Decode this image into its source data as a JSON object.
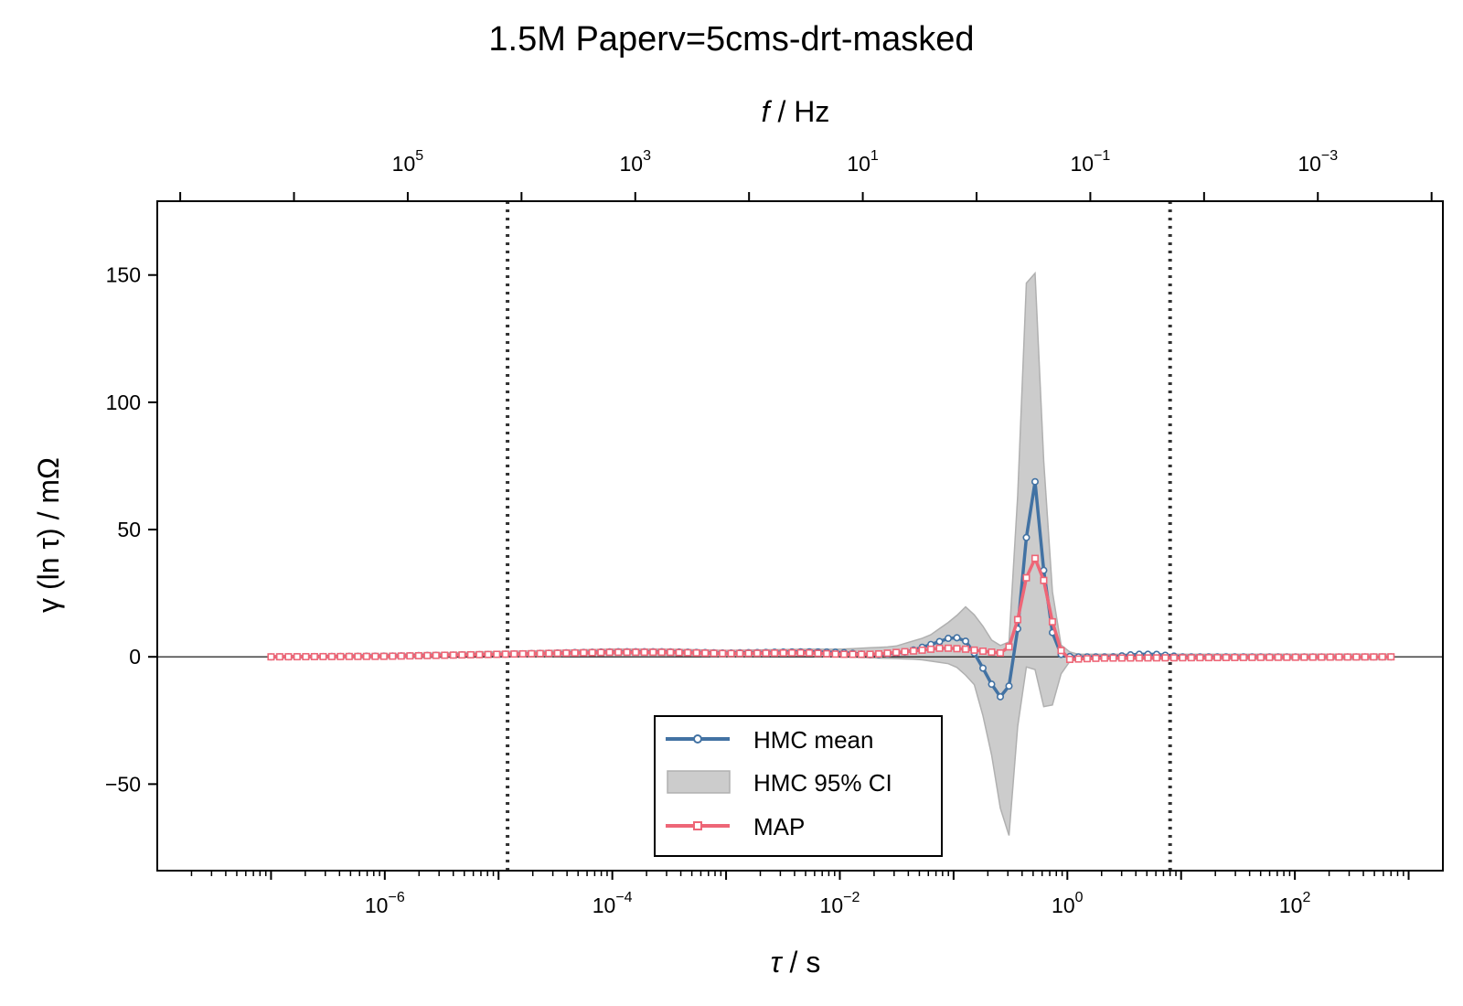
{
  "chart_data": {
    "type": "line",
    "title": "1.5M Paperv=5cms-drt-masked",
    "xlabel_symbol": "τ",
    "xlabel_unit": " / s",
    "top_xlabel_symbol": "f",
    "top_xlabel_unit": " / Hz",
    "ylabel_main": "γ (ln τ)",
    "ylabel_unit": " / mΩ",
    "x_scale": "log",
    "x_lim": [
      1e-08,
      2000.0
    ],
    "y_lim": [
      -84,
      179
    ],
    "x_ticks": [
      {
        "base": "10",
        "exp": "−6",
        "value": 1e-06
      },
      {
        "base": "10",
        "exp": "−4",
        "value": 0.0001
      },
      {
        "base": "10",
        "exp": "−2",
        "value": 0.01
      },
      {
        "base": "10",
        "exp": "0",
        "value": 1
      },
      {
        "base": "10",
        "exp": "2",
        "value": 100
      }
    ],
    "top_x_ticks": [
      {
        "base": "10",
        "exp": "5",
        "value": 100000.0
      },
      {
        "base": "10",
        "exp": "3",
        "value": 1000.0
      },
      {
        "base": "10",
        "exp": "1",
        "value": 10
      },
      {
        "base": "10",
        "exp": "−1",
        "value": 0.1
      },
      {
        "base": "10",
        "exp": "−3",
        "value": 0.001
      }
    ],
    "y_ticks": [
      {
        "label": "−50",
        "value": -50
      },
      {
        "label": "0",
        "value": 0
      },
      {
        "label": "50",
        "value": 50
      },
      {
        "label": "100",
        "value": 100
      },
      {
        "label": "150",
        "value": 150
      }
    ],
    "reference_lines_x": [
      1.2e-05,
      8.0
    ],
    "legend": {
      "position": "lower center",
      "entries": [
        "HMC mean",
        "HMC 95% CI",
        "MAP"
      ]
    },
    "colors": {
      "hmc_mean": "#4272a3",
      "ci_fill": "#cccccc",
      "ci_edge": "#b0b0b0",
      "map": "#ee6677",
      "ref_line": "#333333"
    },
    "x_range": [
      1e-07,
      700
    ],
    "n_points": 130,
    "series": [
      {
        "name": "HMC mean",
        "points": [
          [
            1e-07,
            0
          ],
          [
            1e-06,
            0.3
          ],
          [
            1e-05,
            1.0
          ],
          [
            0.0001,
            2.0
          ],
          [
            0.0003,
            2.0
          ],
          [
            0.001,
            1.5
          ],
          [
            0.005,
            2.0
          ],
          [
            0.01,
            1.8
          ],
          [
            0.02,
            0.7
          ],
          [
            0.04,
            2.0
          ],
          [
            0.07,
            5.5
          ],
          [
            0.1,
            8.0
          ],
          [
            0.13,
            6.0
          ],
          [
            0.16,
            0
          ],
          [
            0.2,
            -8
          ],
          [
            0.25,
            -16
          ],
          [
            0.3,
            -14
          ],
          [
            0.35,
            3
          ],
          [
            0.4,
            27
          ],
          [
            0.46,
            59
          ],
          [
            0.5,
            74
          ],
          [
            0.56,
            59
          ],
          [
            0.63,
            30
          ],
          [
            0.7,
            14
          ],
          [
            0.8,
            3
          ],
          [
            0.9,
            0.5
          ],
          [
            1.1,
            0
          ],
          [
            2.5,
            0
          ],
          [
            4,
            1.0
          ],
          [
            6,
            1.0
          ],
          [
            10,
            0
          ],
          [
            700,
            0
          ]
        ]
      },
      {
        "name": "HMC 95% CI",
        "upper": [
          [
            1e-07,
            0.5
          ],
          [
            1e-06,
            1.0
          ],
          [
            1e-05,
            2.0
          ],
          [
            0.0001,
            3.0
          ],
          [
            0.0003,
            3.0
          ],
          [
            0.001,
            2.5
          ],
          [
            0.005,
            3.0
          ],
          [
            0.01,
            3.0
          ],
          [
            0.03,
            4.0
          ],
          [
            0.06,
            8.0
          ],
          [
            0.1,
            15
          ],
          [
            0.13,
            20
          ],
          [
            0.17,
            14
          ],
          [
            0.22,
            6
          ],
          [
            0.27,
            4
          ],
          [
            0.31,
            6
          ],
          [
            0.35,
            40
          ],
          [
            0.4,
            110
          ],
          [
            0.45,
            160
          ],
          [
            0.5,
            167
          ],
          [
            0.56,
            120
          ],
          [
            0.63,
            70
          ],
          [
            0.7,
            35
          ],
          [
            0.8,
            12
          ],
          [
            0.9,
            3
          ],
          [
            1.2,
            1
          ],
          [
            700,
            1
          ]
        ],
        "lower": [
          [
            1e-07,
            -0.5
          ],
          [
            1e-06,
            -0.5
          ],
          [
            1e-05,
            0
          ],
          [
            0.0001,
            1.0
          ],
          [
            0.001,
            0.5
          ],
          [
            0.01,
            0
          ],
          [
            0.05,
            -1
          ],
          [
            0.1,
            -3
          ],
          [
            0.15,
            -10
          ],
          [
            0.2,
            -30
          ],
          [
            0.25,
            -55
          ],
          [
            0.28,
            -72
          ],
          [
            0.31,
            -70
          ],
          [
            0.36,
            -30
          ],
          [
            0.42,
            -5
          ],
          [
            0.47,
            -2
          ],
          [
            0.52,
            -5
          ],
          [
            0.6,
            -18
          ],
          [
            0.68,
            -24
          ],
          [
            0.75,
            -18
          ],
          [
            0.85,
            -8
          ],
          [
            1.0,
            -2
          ],
          [
            1.3,
            -1
          ],
          [
            700,
            -1
          ]
        ]
      },
      {
        "name": "MAP",
        "points": [
          [
            1e-07,
            0
          ],
          [
            1e-06,
            0.2
          ],
          [
            1e-05,
            1.0
          ],
          [
            0.0001,
            1.8
          ],
          [
            0.0003,
            1.8
          ],
          [
            0.001,
            1.3
          ],
          [
            0.005,
            1.6
          ],
          [
            0.01,
            1.0
          ],
          [
            0.02,
            1.0
          ],
          [
            0.05,
            2.5
          ],
          [
            0.08,
            3.5
          ],
          [
            0.13,
            3.0
          ],
          [
            0.2,
            2.0
          ],
          [
            0.26,
            1.5
          ],
          [
            0.3,
            3
          ],
          [
            0.34,
            8
          ],
          [
            0.38,
            18
          ],
          [
            0.43,
            30
          ],
          [
            0.48,
            38
          ],
          [
            0.54,
            39
          ],
          [
            0.59,
            34
          ],
          [
            0.66,
            25
          ],
          [
            0.72,
            16
          ],
          [
            0.8,
            7
          ],
          [
            0.89,
            2
          ],
          [
            0.95,
            0
          ],
          [
            1.05,
            -1
          ],
          [
            2,
            -0.5
          ],
          [
            700,
            0
          ]
        ]
      }
    ]
  }
}
